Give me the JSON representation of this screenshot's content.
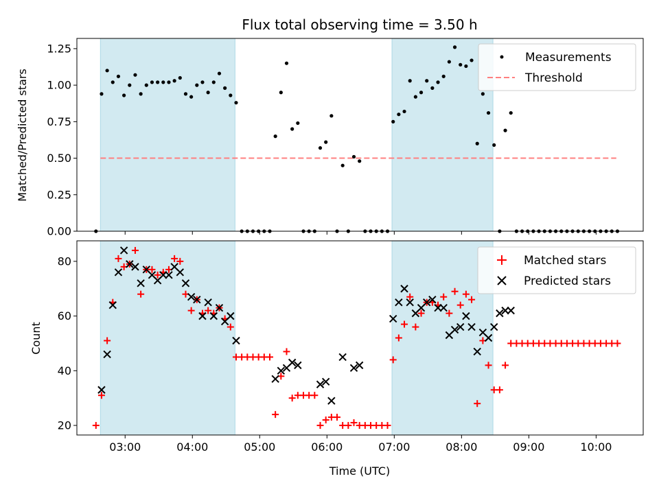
{
  "title": "Flux total observing time = 3.50 h",
  "xlabel": "Time (UTC)",
  "x_ticks": [
    "03:00",
    "04:00",
    "05:00",
    "06:00",
    "07:00",
    "08:00",
    "09:00",
    "10:00"
  ],
  "x_range": [
    "02:17",
    "10:42"
  ],
  "shaded_intervals": [
    [
      "02:38",
      "04:38"
    ],
    [
      "06:58",
      "08:28"
    ]
  ],
  "colors": {
    "shade": "#add8e6",
    "measurement": "#000000",
    "threshold": "#ff7f7f",
    "matched": "#ff0000",
    "predicted": "#000000"
  },
  "chart_data": [
    {
      "type": "scatter",
      "ylabel": "Matched/Predicted stars",
      "ylim": [
        0,
        1.32
      ],
      "y_ticks": [
        "0.00",
        "0.25",
        "0.50",
        "0.75",
        "1.00",
        "1.25"
      ],
      "legend_position": "top-right",
      "legend": [
        {
          "label": "Measurements"
        },
        {
          "label": "Threshold"
        }
      ],
      "threshold": {
        "from": "02:38",
        "to": "10:18",
        "value": 0.5
      },
      "x": [
        "02:34",
        "02:39",
        "02:44",
        "02:49",
        "02:54",
        "02:59",
        "03:04",
        "03:09",
        "03:14",
        "03:19",
        "03:24",
        "03:29",
        "03:34",
        "03:39",
        "03:44",
        "03:49",
        "03:54",
        "03:59",
        "04:04",
        "04:09",
        "04:14",
        "04:19",
        "04:24",
        "04:29",
        "04:34",
        "04:39",
        "04:44",
        "04:49",
        "04:54",
        "04:59",
        "05:04",
        "05:09",
        "05:14",
        "05:19",
        "05:24",
        "05:29",
        "05:34",
        "05:39",
        "05:44",
        "05:49",
        "05:54",
        "05:59",
        "06:04",
        "06:09",
        "06:14",
        "06:19",
        "06:24",
        "06:29",
        "06:34",
        "06:39",
        "06:44",
        "06:49",
        "06:54",
        "06:59",
        "07:04",
        "07:09",
        "07:14",
        "07:19",
        "07:24",
        "07:29",
        "07:34",
        "07:39",
        "07:44",
        "07:49",
        "07:54",
        "07:59",
        "08:04",
        "08:09",
        "08:14",
        "08:19",
        "08:24",
        "08:29",
        "08:34",
        "08:39",
        "08:44",
        "08:49",
        "08:54",
        "08:59",
        "09:04",
        "09:09",
        "09:14",
        "09:19",
        "09:24",
        "09:29",
        "09:34",
        "09:39",
        "09:44",
        "09:49",
        "09:54",
        "09:59",
        "10:04",
        "10:09",
        "10:14",
        "10:19"
      ],
      "y": [
        0,
        0.94,
        1.1,
        1.02,
        1.06,
        0.93,
        1.0,
        1.07,
        0.94,
        1.0,
        1.02,
        1.02,
        1.02,
        1.02,
        1.03,
        1.05,
        0.94,
        0.92,
        1.0,
        1.02,
        0.95,
        1.02,
        1.08,
        0.98,
        0.93,
        0.88,
        0,
        0,
        0,
        0,
        0,
        0,
        0.65,
        0.95,
        1.15,
        0.7,
        0.74,
        0,
        0,
        0,
        0.57,
        0.61,
        0.79,
        0,
        0.45,
        0,
        0.51,
        0.48,
        0,
        0,
        0,
        0,
        0,
        0.75,
        0.8,
        0.82,
        1.03,
        0.92,
        0.95,
        1.03,
        0.98,
        1.02,
        1.06,
        1.16,
        1.26,
        1.14,
        1.13,
        1.17,
        0.6,
        0.94,
        0.81,
        0.59,
        0,
        0.69,
        0.81,
        0,
        0,
        0,
        0,
        0,
        0,
        0,
        0,
        0,
        0,
        0,
        0,
        0,
        0,
        0,
        0,
        0,
        0,
        0
      ]
    },
    {
      "type": "scatter",
      "ylabel": "Count",
      "xlabel": "Time (UTC)",
      "ylim": [
        16.5,
        87.5
      ],
      "y_ticks": [
        "20",
        "40",
        "60",
        "80"
      ],
      "legend_position": "top-right",
      "series": [
        {
          "name": "Matched stars",
          "x": [
            "02:34",
            "02:39",
            "02:44",
            "02:49",
            "02:54",
            "02:59",
            "03:04",
            "03:09",
            "03:14",
            "03:19",
            "03:24",
            "03:29",
            "03:34",
            "03:39",
            "03:44",
            "03:49",
            "03:54",
            "03:59",
            "04:04",
            "04:09",
            "04:14",
            "04:19",
            "04:24",
            "04:29",
            "04:34",
            "04:39",
            "04:44",
            "04:49",
            "04:54",
            "04:59",
            "05:04",
            "05:09",
            "05:14",
            "05:19",
            "05:24",
            "05:29",
            "05:34",
            "05:39",
            "05:44",
            "05:49",
            "05:54",
            "05:59",
            "06:04",
            "06:09",
            "06:14",
            "06:19",
            "06:24",
            "06:29",
            "06:34",
            "06:39",
            "06:44",
            "06:49",
            "06:54",
            "06:59",
            "07:04",
            "07:09",
            "07:14",
            "07:19",
            "07:24",
            "07:29",
            "07:34",
            "07:39",
            "07:44",
            "07:49",
            "07:54",
            "07:59",
            "08:04",
            "08:09",
            "08:14",
            "08:19",
            "08:24",
            "08:29",
            "08:34",
            "08:39",
            "08:44",
            "08:49",
            "08:54",
            "08:59",
            "09:04",
            "09:09",
            "09:14",
            "09:19",
            "09:24",
            "09:29",
            "09:34",
            "09:39",
            "09:44",
            "09:49",
            "09:54",
            "09:59",
            "10:04",
            "10:09",
            "10:14",
            "10:19"
          ],
          "y": [
            20,
            31,
            51,
            65,
            81,
            78,
            79,
            84,
            68,
            77,
            77,
            75,
            76,
            77,
            81,
            80,
            68,
            62,
            66,
            61,
            62,
            61,
            63,
            59,
            56,
            45,
            45,
            45,
            45,
            45,
            45,
            45,
            24,
            38,
            47,
            30,
            31,
            31,
            31,
            31,
            20,
            22,
            23,
            23,
            20,
            20,
            21,
            20,
            20,
            20,
            20,
            20,
            20,
            44,
            52,
            57,
            67,
            56,
            61,
            65,
            65,
            64,
            67,
            61,
            69,
            64,
            68,
            66,
            28,
            51,
            42,
            33,
            33,
            42,
            50,
            50,
            50,
            50,
            50,
            50,
            50,
            50,
            50,
            50,
            50,
            50,
            50,
            50,
            50,
            50,
            50,
            50,
            50,
            50
          ]
        },
        {
          "name": "Predicted stars",
          "x": [
            "02:39",
            "02:44",
            "02:49",
            "02:54",
            "02:59",
            "03:04",
            "03:09",
            "03:14",
            "03:19",
            "03:24",
            "03:29",
            "03:34",
            "03:39",
            "03:44",
            "03:49",
            "03:54",
            "03:59",
            "04:04",
            "04:09",
            "04:14",
            "04:19",
            "04:24",
            "04:29",
            "04:34",
            "04:39",
            "05:14",
            "05:19",
            "05:24",
            "05:29",
            "05:34",
            "05:54",
            "05:59",
            "06:04",
            "06:14",
            "06:24",
            "06:29",
            "06:59",
            "07:04",
            "07:09",
            "07:14",
            "07:19",
            "07:24",
            "07:29",
            "07:34",
            "07:39",
            "07:44",
            "07:49",
            "07:54",
            "07:59",
            "08:04",
            "08:09",
            "08:14",
            "08:19",
            "08:24",
            "08:29",
            "08:34",
            "08:39",
            "08:44"
          ],
          "y": [
            33,
            46,
            64,
            76,
            84,
            79,
            78,
            72,
            77,
            75,
            73,
            75,
            75,
            78,
            76,
            72,
            67,
            66,
            60,
            65,
            60,
            63,
            58,
            60,
            51,
            37,
            40,
            41,
            43,
            42,
            35,
            36,
            29,
            45,
            41,
            42,
            59,
            65,
            70,
            65,
            61,
            63,
            65,
            66,
            63,
            63,
            53,
            55,
            56,
            60,
            56,
            47,
            54,
            52,
            56,
            61,
            62,
            62
          ]
        }
      ]
    }
  ]
}
